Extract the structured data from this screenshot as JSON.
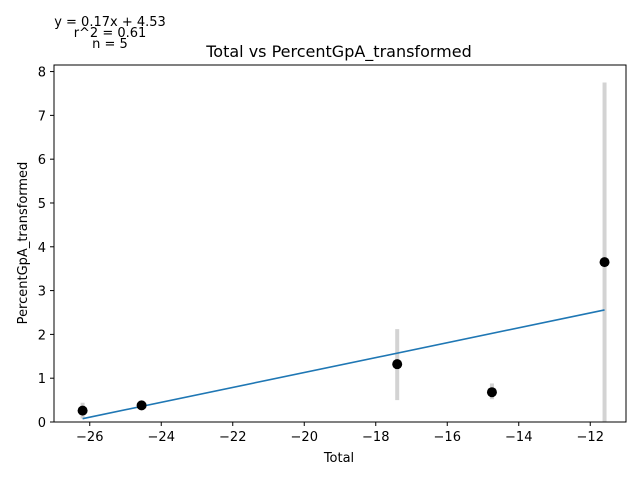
{
  "chart_data": {
    "type": "scatter",
    "title": "Total vs PercentGpA_transformed",
    "xlabel": "Total",
    "ylabel": "PercentGpA_transformed",
    "xlim": [
      -27,
      -11
    ],
    "ylim": [
      0,
      8.15
    ],
    "x_ticks": [
      -26,
      -24,
      -22,
      -20,
      -18,
      -16,
      -14,
      -12
    ],
    "y_ticks": [
      0,
      1,
      2,
      3,
      4,
      5,
      6,
      7,
      8
    ],
    "x_tick_labels": [
      "−26",
      "−24",
      "−22",
      "−20",
      "−18",
      "−16",
      "−14",
      "−12"
    ],
    "y_tick_labels": [
      "0",
      "1",
      "2",
      "3",
      "4",
      "5",
      "6",
      "7",
      "8"
    ],
    "grid": false,
    "points": [
      {
        "x": -26.2,
        "y": 0.26,
        "err_low": 0.08,
        "err_high": 0.44
      },
      {
        "x": -24.55,
        "y": 0.38,
        "err_low": 0.33,
        "err_high": 0.43
      },
      {
        "x": -17.4,
        "y": 1.32,
        "err_low": 0.5,
        "err_high": 2.12
      },
      {
        "x": -14.75,
        "y": 0.68,
        "err_low": 0.52,
        "err_high": 0.88
      },
      {
        "x": -11.6,
        "y": 3.65,
        "err_low": 0.0,
        "err_high": 7.75
      }
    ],
    "fit": {
      "x_start": -26.2,
      "x_end": -11.6,
      "slope": 0.17,
      "intercept": 4.53
    },
    "annotations": {
      "equation": "y = 0.17x + 4.53",
      "r2": "r^2 = 0.61",
      "n": "n = 5"
    },
    "colors": {
      "points": "#000000",
      "errorbars": "#d3d3d3",
      "fit_line": "#1f77b4"
    }
  }
}
